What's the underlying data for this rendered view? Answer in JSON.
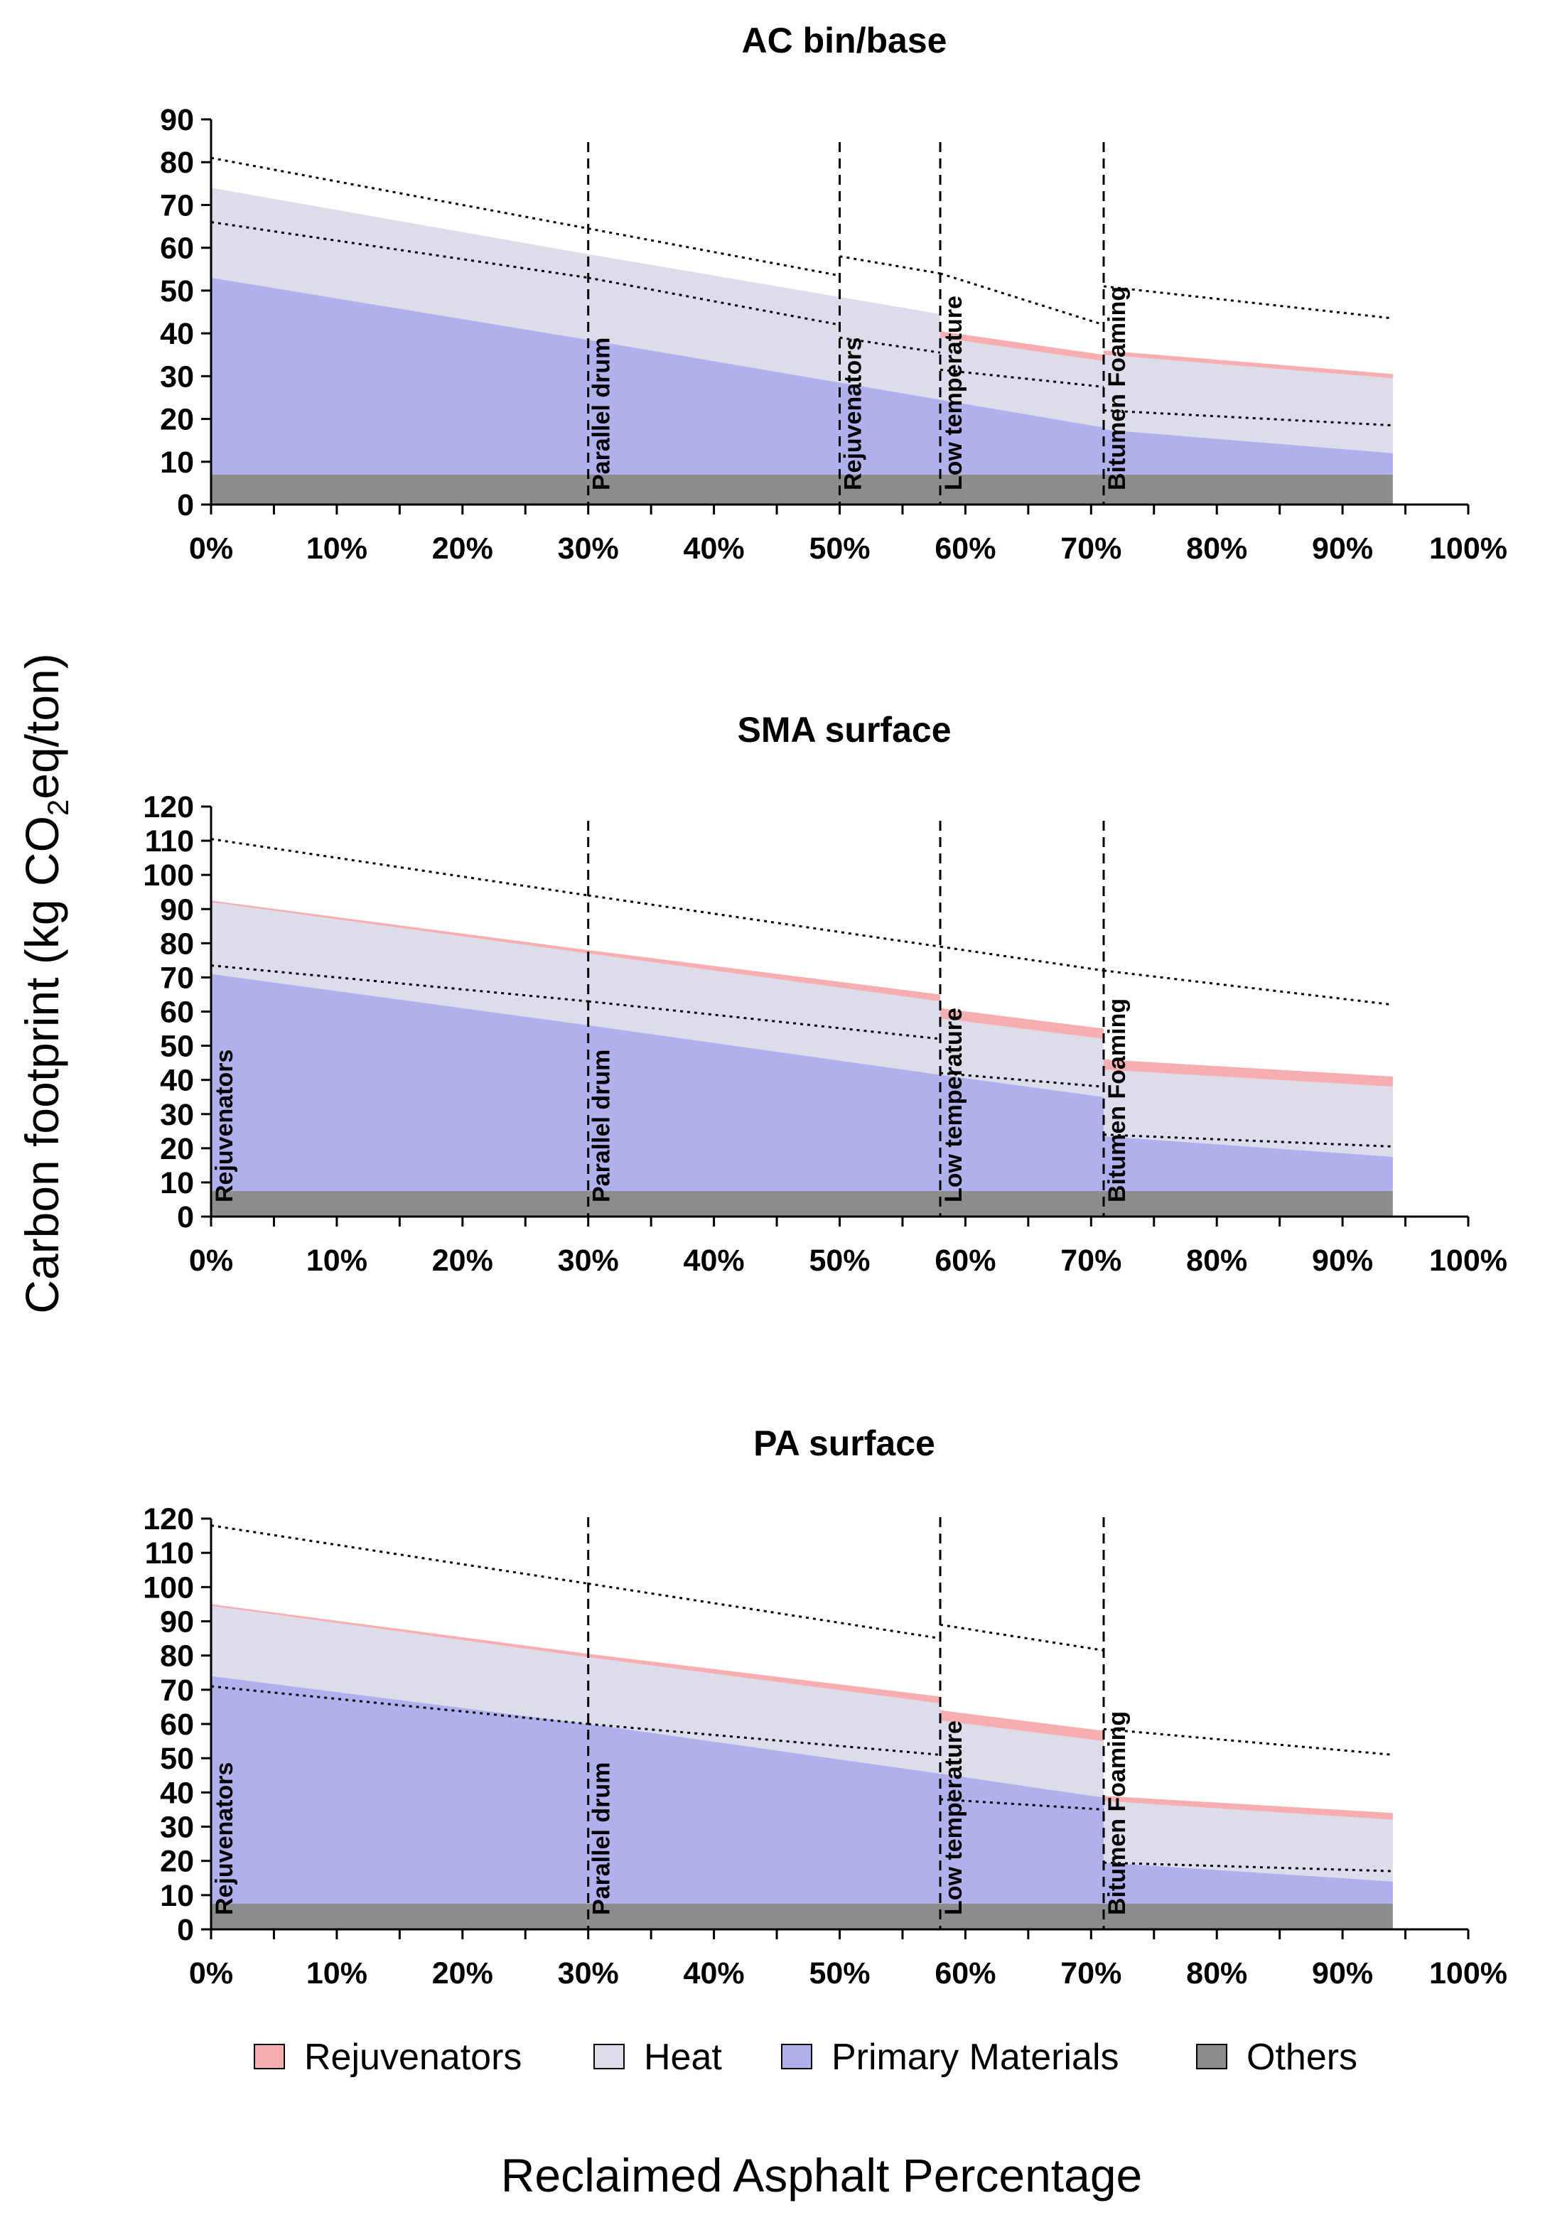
{
  "figure": {
    "ylabel_main": "Carbon footprint (kg CO",
    "ylabel_sub": "2",
    "ylabel_tail": "eq/ton)",
    "xlabel": "Reclaimed Asphalt Percentage"
  },
  "colors": {
    "rejuvenators": "#f6aeb0",
    "heat": "#dcdceb",
    "primary": "#b0b0ec",
    "others": "#8c8c8c",
    "axis": "#000000"
  },
  "legend": [
    {
      "key": "rejuvenators",
      "label": "Rejuvenators"
    },
    {
      "key": "heat",
      "label": "Heat"
    },
    {
      "key": "primary",
      "label": "Primary Materials"
    },
    {
      "key": "others",
      "label": "Others"
    }
  ],
  "chart_data": [
    {
      "type": "area",
      "title": "AC bin/base",
      "xlabel": "Reclaimed Asphalt Percentage",
      "ylabel": "Carbon footprint (kg CO2eq/ton)",
      "xlim": [
        0,
        100
      ],
      "ylim": [
        0,
        90
      ],
      "xticks": [
        0,
        10,
        20,
        30,
        40,
        50,
        60,
        70,
        80,
        90,
        100
      ],
      "xtick_labels": [
        "0%",
        "10%",
        "20%",
        "30%",
        "40%",
        "50%",
        "60%",
        "70%",
        "80%",
        "90%",
        "100%"
      ],
      "yticks": [
        0,
        10,
        20,
        30,
        40,
        50,
        60,
        70,
        80,
        90
      ],
      "ytick_labels": [
        "0",
        "10",
        "20",
        "30",
        "40",
        "50",
        "60",
        "70",
        "80",
        "90"
      ],
      "technologies": [
        {
          "label": "Parallel drum",
          "x": 30
        },
        {
          "label": "Rejuvenators",
          "x": 50
        },
        {
          "label": "Low temperature",
          "x": 58
        },
        {
          "label": "Bitumen Foaming",
          "x": 71
        }
      ],
      "segments": [
        {
          "x": [
            0,
            30
          ],
          "others": [
            7,
            7
          ],
          "primary": [
            53,
            38.5
          ],
          "heat": [
            74,
            58.5
          ],
          "rejuvenators": [
            74,
            58.5
          ]
        },
        {
          "x": [
            30,
            50
          ],
          "others": [
            7,
            7
          ],
          "primary": [
            38.5,
            28.5
          ],
          "heat": [
            58.5,
            48.5
          ],
          "rejuvenators": [
            58.5,
            48.5
          ]
        },
        {
          "x": [
            50,
            58
          ],
          "others": [
            7,
            7
          ],
          "primary": [
            28.5,
            24.5
          ],
          "heat": [
            48.5,
            44.5
          ],
          "rejuvenators": [
            48.5,
            44.5
          ]
        },
        {
          "x": [
            58,
            71
          ],
          "others": [
            7,
            7
          ],
          "primary": [
            24.5,
            18
          ],
          "heat": [
            39,
            33.5
          ],
          "rejuvenators": [
            40.5,
            35
          ]
        },
        {
          "x": [
            71,
            94
          ],
          "others": [
            7,
            7
          ],
          "primary": [
            17.5,
            12
          ],
          "heat": [
            35,
            29.5
          ],
          "rejuvenators": [
            36,
            30.5
          ]
        }
      ],
      "dotted_lines": [
        {
          "x": [
            0,
            30
          ],
          "y": [
            81,
            64.5
          ]
        },
        {
          "x": [
            30,
            50
          ],
          "y": [
            64.5,
            53.5
          ]
        },
        {
          "x": [
            50,
            58
          ],
          "y": [
            58,
            54
          ]
        },
        {
          "x": [
            58,
            71
          ],
          "y": [
            54,
            42
          ]
        },
        {
          "x": [
            71,
            94
          ],
          "y": [
            51,
            43.5
          ]
        },
        {
          "x": [
            0,
            30
          ],
          "y": [
            66,
            53
          ]
        },
        {
          "x": [
            30,
            50
          ],
          "y": [
            53,
            42
          ]
        },
        {
          "x": [
            50,
            58
          ],
          "y": [
            39,
            35.5
          ]
        },
        {
          "x": [
            58,
            71
          ],
          "y": [
            31.5,
            27.5
          ]
        },
        {
          "x": [
            71,
            94
          ],
          "y": [
            22,
            18.5
          ]
        }
      ]
    },
    {
      "type": "area",
      "title": "SMA surface",
      "xlabel": "Reclaimed Asphalt Percentage",
      "ylabel": "Carbon footprint (kg CO2eq/ton)",
      "xlim": [
        0,
        100
      ],
      "ylim": [
        0,
        120
      ],
      "xticks": [
        0,
        10,
        20,
        30,
        40,
        50,
        60,
        70,
        80,
        90,
        100
      ],
      "xtick_labels": [
        "0%",
        "10%",
        "20%",
        "30%",
        "40%",
        "50%",
        "60%",
        "70%",
        "80%",
        "90%",
        "100%"
      ],
      "yticks": [
        0,
        10,
        20,
        30,
        40,
        50,
        60,
        70,
        80,
        90,
        100,
        110,
        120
      ],
      "ytick_labels": [
        "0",
        "10",
        "20",
        "30",
        "40",
        "50",
        "60",
        "70",
        "80",
        "90",
        "100",
        "110",
        "120"
      ],
      "technologies": [
        {
          "label": "Rejuvenators",
          "x": 0
        },
        {
          "label": "Parallel drum",
          "x": 30
        },
        {
          "label": "Low temperature",
          "x": 58
        },
        {
          "label": "Bitumen Foaming",
          "x": 71
        }
      ],
      "segments": [
        {
          "x": [
            0,
            30
          ],
          "others": [
            7.5,
            7.5
          ],
          "primary": [
            71,
            56
          ],
          "heat": [
            92,
            77
          ],
          "rejuvenators": [
            92.5,
            78
          ]
        },
        {
          "x": [
            30,
            58
          ],
          "others": [
            7.5,
            7.5
          ],
          "primary": [
            56,
            41.5
          ],
          "heat": [
            77,
            63
          ],
          "rejuvenators": [
            78,
            65
          ]
        },
        {
          "x": [
            58,
            71
          ],
          "others": [
            7.5,
            7.5
          ],
          "primary": [
            41.5,
            35
          ],
          "heat": [
            58,
            52
          ],
          "rejuvenators": [
            61,
            55
          ]
        },
        {
          "x": [
            71,
            94
          ],
          "others": [
            7.5,
            7.5
          ],
          "primary": [
            23.5,
            17.5
          ],
          "heat": [
            43,
            38
          ],
          "rejuvenators": [
            46,
            41
          ]
        }
      ],
      "dotted_lines": [
        {
          "x": [
            0,
            30
          ],
          "y": [
            110.5,
            94
          ]
        },
        {
          "x": [
            30,
            58
          ],
          "y": [
            94,
            79
          ]
        },
        {
          "x": [
            58,
            71
          ],
          "y": [
            79,
            72
          ]
        },
        {
          "x": [
            71,
            94
          ],
          "y": [
            72,
            62
          ]
        },
        {
          "x": [
            0,
            30
          ],
          "y": [
            73.5,
            63
          ]
        },
        {
          "x": [
            30,
            58
          ],
          "y": [
            63,
            52
          ]
        },
        {
          "x": [
            58,
            71
          ],
          "y": [
            42,
            38
          ]
        },
        {
          "x": [
            71,
            94
          ],
          "y": [
            24,
            20.5
          ]
        }
      ]
    },
    {
      "type": "area",
      "title": "PA surface",
      "xlabel": "Reclaimed Asphalt Percentage",
      "ylabel": "Carbon footprint (kg CO2eq/ton)",
      "xlim": [
        0,
        100
      ],
      "ylim": [
        0,
        120
      ],
      "xticks": [
        0,
        10,
        20,
        30,
        40,
        50,
        60,
        70,
        80,
        90,
        100
      ],
      "xtick_labels": [
        "0%",
        "10%",
        "20%",
        "30%",
        "40%",
        "50%",
        "60%",
        "70%",
        "80%",
        "90%",
        "100%"
      ],
      "yticks": [
        0,
        10,
        20,
        30,
        40,
        50,
        60,
        70,
        80,
        90,
        100,
        110,
        120
      ],
      "ytick_labels": [
        "0",
        "10",
        "20",
        "30",
        "40",
        "50",
        "60",
        "70",
        "80",
        "90",
        "100",
        "110",
        "120"
      ],
      "technologies": [
        {
          "label": "Rejuvenators",
          "x": 0
        },
        {
          "label": "Parallel drum",
          "x": 30
        },
        {
          "label": "Low temperature",
          "x": 58
        },
        {
          "label": "Bitumen Foaming",
          "x": 71
        }
      ],
      "segments": [
        {
          "x": [
            0,
            30
          ],
          "others": [
            7.5,
            7.5
          ],
          "primary": [
            74,
            60
          ],
          "heat": [
            94.5,
            79.5
          ],
          "rejuvenators": [
            95,
            80.5
          ]
        },
        {
          "x": [
            30,
            58
          ],
          "others": [
            7.5,
            7.5
          ],
          "primary": [
            60,
            45.5
          ],
          "heat": [
            79.5,
            66
          ],
          "rejuvenators": [
            80.5,
            68
          ]
        },
        {
          "x": [
            58,
            71
          ],
          "others": [
            7.5,
            7.5
          ],
          "primary": [
            45.5,
            38.5
          ],
          "heat": [
            61,
            55
          ],
          "rejuvenators": [
            64,
            58
          ]
        },
        {
          "x": [
            71,
            94
          ],
          "others": [
            7.5,
            7.5
          ],
          "primary": [
            19.5,
            14
          ],
          "heat": [
            37.5,
            32
          ],
          "rejuvenators": [
            39,
            34
          ]
        }
      ],
      "dotted_lines": [
        {
          "x": [
            0,
            30
          ],
          "y": [
            118,
            101
          ]
        },
        {
          "x": [
            30,
            58
          ],
          "y": [
            101,
            85
          ]
        },
        {
          "x": [
            58,
            71
          ],
          "y": [
            89,
            81.5
          ]
        },
        {
          "x": [
            71,
            94
          ],
          "y": [
            58.5,
            51
          ]
        },
        {
          "x": [
            0,
            30
          ],
          "y": [
            71,
            60
          ]
        },
        {
          "x": [
            30,
            58
          ],
          "y": [
            60,
            51
          ]
        },
        {
          "x": [
            58,
            71
          ],
          "y": [
            38,
            35
          ]
        },
        {
          "x": [
            71,
            94
          ],
          "y": [
            19.5,
            17
          ]
        }
      ]
    }
  ]
}
